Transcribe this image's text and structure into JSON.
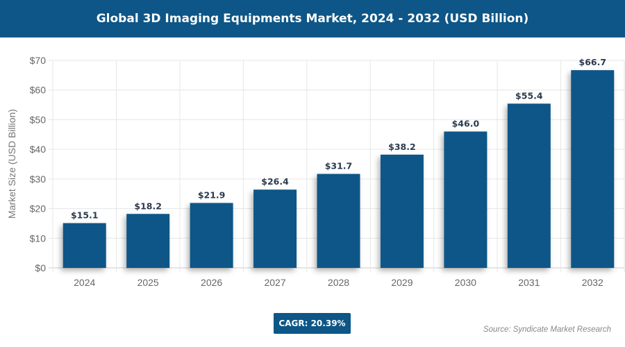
{
  "title": "Global 3D Imaging Equipments Market, 2024 - 2032 (USD Billion)",
  "cagr": "CAGR: 20.39%",
  "source": "Source: Syndicate Market Research",
  "colors": {
    "bar": "#0d5687",
    "header": "#0d5687"
  },
  "chart_data": {
    "type": "bar",
    "categories": [
      "2024",
      "2025",
      "2026",
      "2027",
      "2028",
      "2029",
      "2030",
      "2031",
      "2032"
    ],
    "values": [
      15.1,
      18.2,
      21.9,
      26.4,
      31.7,
      38.2,
      46.0,
      55.4,
      66.7
    ],
    "data_labels": [
      "$15.1",
      "$18.2",
      "$21.9",
      "$26.4",
      "$31.7",
      "$38.2",
      "$46.0",
      "$55.4",
      "$66.7"
    ],
    "ylabel": "Market Size (USD Billion)",
    "ylim": [
      0,
      70
    ],
    "yticks": [
      "$0",
      "$10",
      "$20",
      "$30",
      "$40",
      "$50",
      "$60",
      "$70"
    ],
    "grid": true
  }
}
